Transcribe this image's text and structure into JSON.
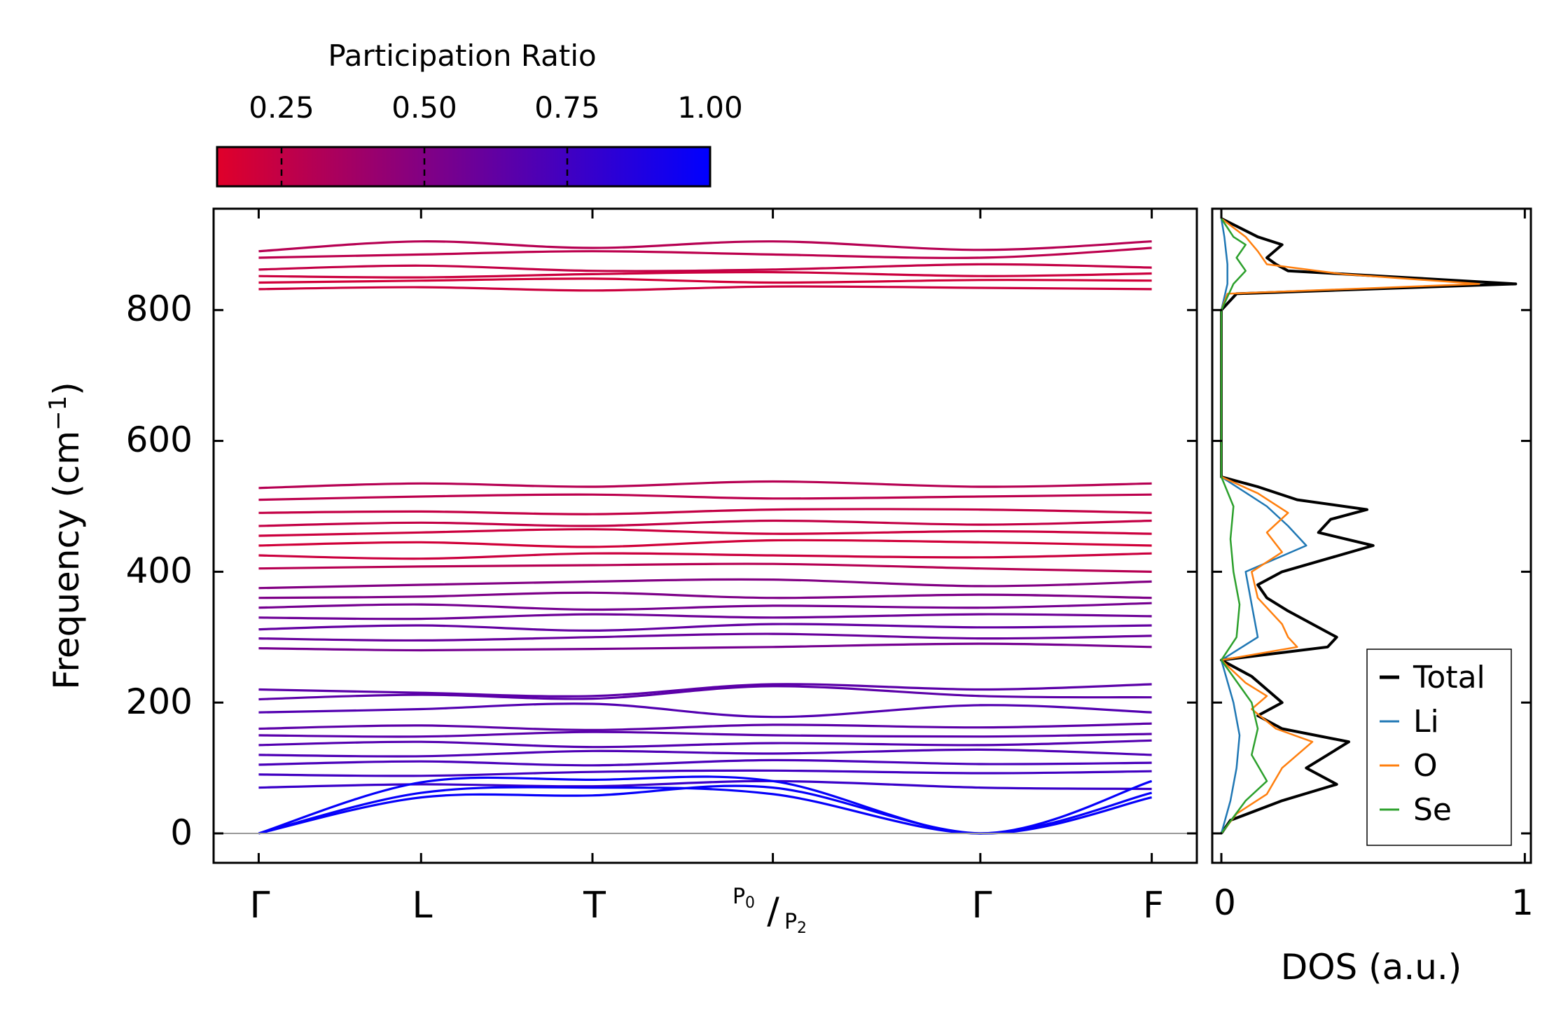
{
  "chart_data": [
    {
      "type": "line",
      "title": "",
      "xlabel": "",
      "ylabel": "Frequency (cm",
      "ylabel_unit_sup": "−1",
      "ylabel_close": ")",
      "x_ticks": [
        "Γ",
        "L",
        "T",
        "P0/P2",
        "Γ",
        "F"
      ],
      "x_ticks_positions": [
        0,
        0.9,
        1.85,
        2.85,
        4.0,
        4.95
      ],
      "y_ticks": [
        0,
        200,
        400,
        600,
        800
      ],
      "ylim": [
        -45,
        955
      ],
      "xlim": [
        -0.25,
        5.2
      ],
      "acoustic_branches": [
        {
          "name": "acoustic-1",
          "x": [
            0,
            0.9,
            1.85,
            2.85,
            4.0,
            4.95
          ],
          "y": [
            0,
            55,
            58,
            70,
            0,
            55
          ]
        },
        {
          "name": "acoustic-2",
          "x": [
            0,
            0.9,
            1.85,
            2.85,
            4.0,
            4.95
          ],
          "y": [
            0,
            62,
            70,
            60,
            0,
            62
          ]
        },
        {
          "name": "acoustic-3",
          "x": [
            0,
            0.9,
            1.85,
            2.85,
            4.0,
            4.95
          ],
          "y": [
            0,
            78,
            82,
            80,
            0,
            80
          ]
        }
      ],
      "optical_branches": [
        {
          "x": [
            0,
            0.9,
            1.85,
            2.85,
            4.0,
            4.95
          ],
          "y": [
            70,
            75,
            72,
            80,
            70,
            68
          ],
          "pr": 0.78
        },
        {
          "x": [
            0,
            0.9,
            1.85,
            2.85,
            4.0,
            4.95
          ],
          "y": [
            90,
            88,
            94,
            96,
            92,
            95
          ],
          "pr": 0.75
        },
        {
          "x": [
            0,
            0.9,
            1.85,
            2.85,
            4.0,
            4.95
          ],
          "y": [
            105,
            110,
            104,
            112,
            106,
            108
          ],
          "pr": 0.72
        },
        {
          "x": [
            0,
            0.9,
            1.85,
            2.85,
            4.0,
            4.95
          ],
          "y": [
            120,
            118,
            126,
            122,
            128,
            120
          ],
          "pr": 0.7
        },
        {
          "x": [
            0,
            0.9,
            1.85,
            2.85,
            4.0,
            4.95
          ],
          "y": [
            135,
            140,
            132,
            138,
            135,
            142
          ],
          "pr": 0.68
        },
        {
          "x": [
            0,
            0.9,
            1.85,
            2.85,
            4.0,
            4.95
          ],
          "y": [
            150,
            148,
            155,
            150,
            148,
            152
          ],
          "pr": 0.66
        },
        {
          "x": [
            0,
            0.9,
            1.85,
            2.85,
            4.0,
            4.95
          ],
          "y": [
            160,
            165,
            158,
            166,
            162,
            168
          ],
          "pr": 0.65
        },
        {
          "x": [
            0,
            0.9,
            1.85,
            2.85,
            4.0,
            4.95
          ],
          "y": [
            185,
            190,
            198,
            178,
            196,
            185
          ],
          "pr": 0.68
        },
        {
          "x": [
            0,
            0.9,
            1.85,
            2.85,
            4.0,
            4.95
          ],
          "y": [
            205,
            212,
            206,
            225,
            210,
            208
          ],
          "pr": 0.65
        },
        {
          "x": [
            0,
            0.9,
            1.85,
            2.85,
            4.0,
            4.95
          ],
          "y": [
            220,
            215,
            210,
            228,
            220,
            228
          ],
          "pr": 0.65
        },
        {
          "x": [
            0,
            0.9,
            1.85,
            2.85,
            4.0,
            4.95
          ],
          "y": [
            283,
            280,
            282,
            285,
            290,
            285
          ],
          "pr": 0.55
        },
        {
          "x": [
            0,
            0.9,
            1.85,
            2.85,
            4.0,
            4.95
          ],
          "y": [
            298,
            295,
            300,
            305,
            298,
            302
          ],
          "pr": 0.6
        },
        {
          "x": [
            0,
            0.9,
            1.85,
            2.85,
            4.0,
            4.95
          ],
          "y": [
            312,
            318,
            310,
            320,
            315,
            318
          ],
          "pr": 0.62
        },
        {
          "x": [
            0,
            0.9,
            1.85,
            2.85,
            4.0,
            4.95
          ],
          "y": [
            330,
            328,
            335,
            330,
            335,
            332
          ],
          "pr": 0.58
        },
        {
          "x": [
            0,
            0.9,
            1.85,
            2.85,
            4.0,
            4.95
          ],
          "y": [
            345,
            350,
            342,
            348,
            345,
            352
          ],
          "pr": 0.55
        },
        {
          "x": [
            0,
            0.9,
            1.85,
            2.85,
            4.0,
            4.95
          ],
          "y": [
            360,
            362,
            368,
            360,
            365,
            360
          ],
          "pr": 0.52
        },
        {
          "x": [
            0,
            0.9,
            1.85,
            2.85,
            4.0,
            4.95
          ],
          "y": [
            375,
            380,
            385,
            388,
            378,
            385
          ],
          "pr": 0.5
        },
        {
          "x": [
            0,
            0.9,
            1.85,
            2.85,
            4.0,
            4.95
          ],
          "y": [
            405,
            408,
            410,
            412,
            405,
            400
          ],
          "pr": 0.3
        },
        {
          "x": [
            0,
            0.9,
            1.85,
            2.85,
            4.0,
            4.95
          ],
          "y": [
            425,
            420,
            428,
            425,
            422,
            428
          ],
          "pr": 0.22
        },
        {
          "x": [
            0,
            0.9,
            1.85,
            2.85,
            4.0,
            4.95
          ],
          "y": [
            440,
            445,
            438,
            448,
            445,
            440
          ],
          "pr": 0.2
        },
        {
          "x": [
            0,
            0.9,
            1.85,
            2.85,
            4.0,
            4.95
          ],
          "y": [
            455,
            460,
            465,
            458,
            462,
            458
          ],
          "pr": 0.22
        },
        {
          "x": [
            0,
            0.9,
            1.85,
            2.85,
            4.0,
            4.95
          ],
          "y": [
            470,
            475,
            470,
            478,
            472,
            478
          ],
          "pr": 0.25
        },
        {
          "x": [
            0,
            0.9,
            1.85,
            2.85,
            4.0,
            4.95
          ],
          "y": [
            490,
            492,
            488,
            495,
            495,
            490
          ],
          "pr": 0.25
        },
        {
          "x": [
            0,
            0.9,
            1.85,
            2.85,
            4.0,
            4.95
          ],
          "y": [
            510,
            515,
            518,
            512,
            515,
            518
          ],
          "pr": 0.28
        },
        {
          "x": [
            0,
            0.9,
            1.85,
            2.85,
            4.0,
            4.95
          ],
          "y": [
            528,
            535,
            530,
            538,
            530,
            535
          ],
          "pr": 0.3
        },
        {
          "x": [
            0,
            0.9,
            1.85,
            2.85,
            4.0,
            4.95
          ],
          "y": [
            832,
            835,
            830,
            836,
            834,
            832
          ],
          "pr": 0.22
        },
        {
          "x": [
            0,
            0.9,
            1.85,
            2.85,
            4.0,
            4.95
          ],
          "y": [
            842,
            845,
            848,
            842,
            846,
            845
          ],
          "pr": 0.2
        },
        {
          "x": [
            0,
            0.9,
            1.85,
            2.85,
            4.0,
            4.95
          ],
          "y": [
            852,
            850,
            855,
            858,
            852,
            856
          ],
          "pr": 0.22
        },
        {
          "x": [
            0,
            0.9,
            1.85,
            2.85,
            4.0,
            4.95
          ],
          "y": [
            862,
            868,
            860,
            862,
            870,
            865
          ],
          "pr": 0.25
        },
        {
          "x": [
            0,
            0.9,
            1.85,
            2.85,
            4.0,
            4.95
          ],
          "y": [
            880,
            885,
            890,
            885,
            880,
            895
          ],
          "pr": 0.28
        },
        {
          "x": [
            0,
            0.9,
            1.85,
            2.85,
            4.0,
            4.95
          ],
          "y": [
            890,
            905,
            895,
            905,
            892,
            905
          ],
          "pr": 0.3
        }
      ]
    },
    {
      "type": "line",
      "xlabel": "DOS (a.u.)",
      "x_ticks": [
        0,
        1
      ],
      "xlim": [
        -0.03,
        1.02
      ],
      "ylim": [
        -45,
        955
      ],
      "legend_location": "lower-right",
      "series": [
        {
          "name": "Total",
          "color": "#000000",
          "freq": [
            0,
            20,
            50,
            75,
            100,
            120,
            140,
            160,
            180,
            200,
            220,
            240,
            265,
            285,
            300,
            320,
            340,
            360,
            380,
            400,
            420,
            440,
            460,
            480,
            495,
            510,
            530,
            545,
            800,
            825,
            840,
            850,
            860,
            870,
            880,
            900,
            912,
            940
          ],
          "values": [
            0,
            0.03,
            0.2,
            0.38,
            0.28,
            0.35,
            0.42,
            0.2,
            0.12,
            0.2,
            0.15,
            0.1,
            0,
            0.35,
            0.38,
            0.3,
            0.22,
            0.15,
            0.12,
            0.2,
            0.35,
            0.5,
            0.32,
            0.36,
            0.48,
            0.25,
            0.12,
            0,
            0,
            0.05,
            0.97,
            0.6,
            0.22,
            0.18,
            0.15,
            0.2,
            0.12,
            0
          ]
        },
        {
          "name": "Li",
          "color": "#1f77b4",
          "freq": [
            0,
            50,
            100,
            150,
            200,
            265,
            300,
            350,
            400,
            440,
            470,
            500,
            545,
            800,
            840,
            870,
            912,
            940
          ],
          "values": [
            0,
            0.03,
            0.05,
            0.06,
            0.04,
            0,
            0.12,
            0.1,
            0.08,
            0.28,
            0.22,
            0.15,
            0,
            0,
            0.02,
            0.02,
            0.01,
            0
          ]
        },
        {
          "name": "O",
          "color": "#ff7f0e",
          "freq": [
            0,
            30,
            60,
            100,
            140,
            160,
            190,
            210,
            230,
            265,
            285,
            300,
            320,
            360,
            400,
            430,
            460,
            490,
            520,
            545,
            800,
            825,
            840,
            855,
            870,
            890,
            912,
            940
          ],
          "values": [
            0,
            0.05,
            0.15,
            0.2,
            0.3,
            0.18,
            0.1,
            0.15,
            0.08,
            0,
            0.25,
            0.22,
            0.2,
            0.12,
            0.1,
            0.2,
            0.15,
            0.22,
            0.12,
            0,
            0,
            0.02,
            0.85,
            0.4,
            0.15,
            0.12,
            0.08,
            0
          ]
        },
        {
          "name": "Se",
          "color": "#2ca02c",
          "freq": [
            0,
            50,
            80,
            120,
            160,
            200,
            265,
            300,
            350,
            400,
            450,
            500,
            545,
            800,
            840,
            860,
            880,
            900,
            912,
            940
          ],
          "values": [
            0,
            0.08,
            0.15,
            0.1,
            0.12,
            0.1,
            0,
            0.05,
            0.06,
            0.04,
            0.03,
            0.04,
            0,
            0,
            0.04,
            0.08,
            0.05,
            0.08,
            0.04,
            0
          ]
        }
      ]
    },
    {
      "type": "heatmap",
      "title": "Participation Ratio",
      "ticks": [
        "0.25",
        "0.50",
        "0.75",
        "1.00"
      ],
      "tick_values": [
        0.25,
        0.5,
        0.75,
        1.0
      ],
      "range": [
        0.14,
        1.0
      ],
      "colors": [
        "#e0002a",
        "#0000ff"
      ]
    }
  ],
  "legend": {
    "total": "Total",
    "li": "Li",
    "o": "O",
    "se": "Se"
  },
  "labels": {
    "gamma": "Γ",
    "l": "L",
    "t": "T",
    "p0": "P",
    "p0_sub": "0",
    "p2": "P",
    "p2_sub": "2",
    "gamma2": "Γ",
    "f": "F"
  }
}
